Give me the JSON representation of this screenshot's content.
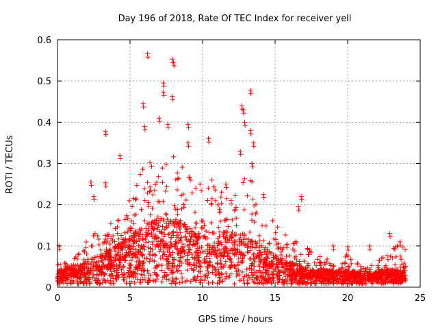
{
  "chart_data": {
    "type": "scatter",
    "title": "Day 196 of 2018, Rate Of TEC Index for receiver yell",
    "xlabel": "GPS time / hours",
    "ylabel": "ROTI / TECUs",
    "xlim": [
      0,
      25
    ],
    "ylim": [
      0,
      0.6
    ],
    "x_ticks": [
      0,
      5,
      10,
      15,
      20,
      25
    ],
    "y_ticks": [
      0,
      0.1,
      0.2,
      0.3,
      0.4,
      0.5,
      0.6
    ],
    "x_tick_labels": [
      "0",
      "5",
      "10",
      "15",
      "20",
      "25"
    ],
    "y_tick_labels": [
      "0",
      "0.1",
      "0.2",
      "0.3",
      "0.4",
      "0.5",
      "0.6"
    ],
    "grid": true,
    "marker": "+",
    "series": [
      {
        "name": "ROTI",
        "color": "#ff0000",
        "x_range": [
          0,
          24
        ],
        "envelope": {
          "hours": [
            0,
            1,
            2,
            3,
            4,
            5,
            6,
            7,
            8,
            9,
            10,
            11,
            12,
            13,
            14,
            15,
            16,
            17,
            18,
            19,
            20,
            21,
            22,
            23,
            24
          ],
          "base_median": [
            0.02,
            0.025,
            0.035,
            0.045,
            0.06,
            0.075,
            0.09,
            0.1,
            0.1,
            0.09,
            0.085,
            0.08,
            0.08,
            0.075,
            0.06,
            0.045,
            0.035,
            0.025,
            0.022,
            0.02,
            0.02,
            0.02,
            0.02,
            0.022,
            0.02
          ],
          "upper_typical": [
            0.06,
            0.06,
            0.12,
            0.14,
            0.18,
            0.22,
            0.3,
            0.33,
            0.33,
            0.3,
            0.28,
            0.25,
            0.25,
            0.3,
            0.2,
            0.16,
            0.12,
            0.1,
            0.08,
            0.07,
            0.08,
            0.05,
            0.06,
            0.1,
            0.1
          ]
        },
        "notable_points": [
          {
            "x": 0.1,
            "y": 0.1
          },
          {
            "x": 2.3,
            "y": 0.255
          },
          {
            "x": 2.5,
            "y": 0.22
          },
          {
            "x": 3.3,
            "y": 0.378
          },
          {
            "x": 3.3,
            "y": 0.253
          },
          {
            "x": 4.3,
            "y": 0.32
          },
          {
            "x": 5.9,
            "y": 0.445
          },
          {
            "x": 6.0,
            "y": 0.39
          },
          {
            "x": 6.2,
            "y": 0.566
          },
          {
            "x": 7.3,
            "y": 0.495
          },
          {
            "x": 7.3,
            "y": 0.473
          },
          {
            "x": 7.0,
            "y": 0.41
          },
          {
            "x": 7.9,
            "y": 0.553
          },
          {
            "x": 8.0,
            "y": 0.545
          },
          {
            "x": 7.9,
            "y": 0.463
          },
          {
            "x": 7.6,
            "y": 0.395
          },
          {
            "x": 9.0,
            "y": 0.395
          },
          {
            "x": 9.0,
            "y": 0.35
          },
          {
            "x": 10.4,
            "y": 0.36
          },
          {
            "x": 11.6,
            "y": 0.25
          },
          {
            "x": 12.7,
            "y": 0.44
          },
          {
            "x": 12.8,
            "y": 0.43
          },
          {
            "x": 12.9,
            "y": 0.4
          },
          {
            "x": 12.6,
            "y": 0.33
          },
          {
            "x": 13.3,
            "y": 0.478
          },
          {
            "x": 13.3,
            "y": 0.38
          },
          {
            "x": 13.5,
            "y": 0.35
          },
          {
            "x": 13.4,
            "y": 0.3
          },
          {
            "x": 14.2,
            "y": 0.225
          },
          {
            "x": 16.6,
            "y": 0.195
          },
          {
            "x": 16.8,
            "y": 0.22
          },
          {
            "x": 19.0,
            "y": 0.1
          },
          {
            "x": 20.0,
            "y": 0.098
          },
          {
            "x": 21.5,
            "y": 0.1
          },
          {
            "x": 22.9,
            "y": 0.13
          },
          {
            "x": 23.6,
            "y": 0.11
          }
        ]
      }
    ]
  }
}
